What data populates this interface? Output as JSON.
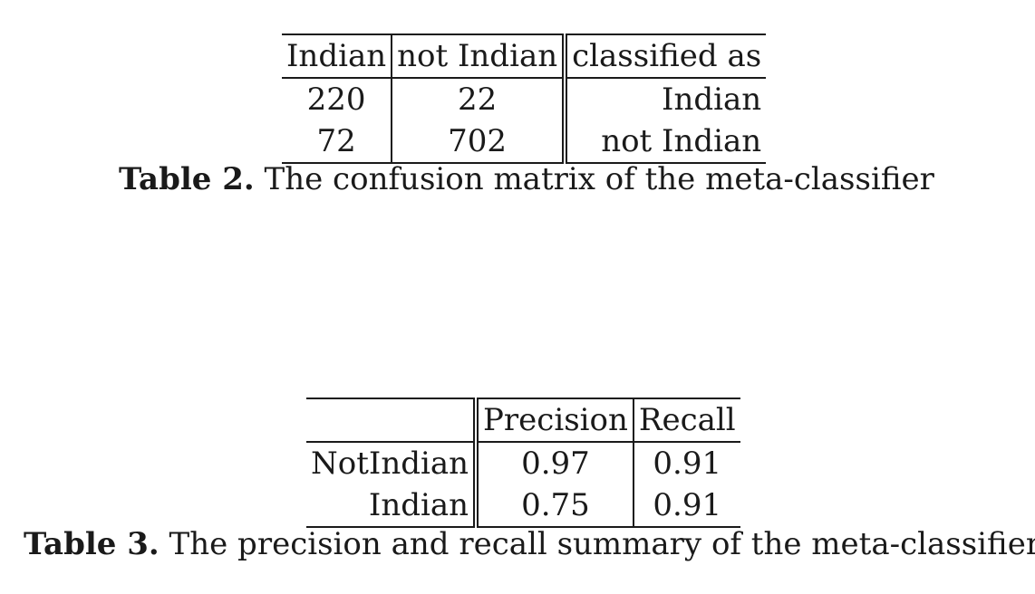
{
  "table2": {
    "header": [
      "Indian",
      "not Indian",
      "classified as"
    ],
    "rows": [
      [
        "220",
        "22",
        "Indian"
      ],
      [
        "72",
        "702",
        "not Indian"
      ]
    ],
    "caption_label": "Table 2.",
    "caption_text": "The confusion matrix of the meta-classifier"
  },
  "table3": {
    "header": [
      "",
      "Precision",
      "Recall"
    ],
    "rows": [
      [
        "NotIndian",
        "0.97",
        "0.91"
      ],
      [
        "Indian",
        "0.75",
        "0.91"
      ]
    ],
    "caption_label": "Table 3.",
    "caption_text": "The precision and recall summary of the meta-classifier"
  }
}
